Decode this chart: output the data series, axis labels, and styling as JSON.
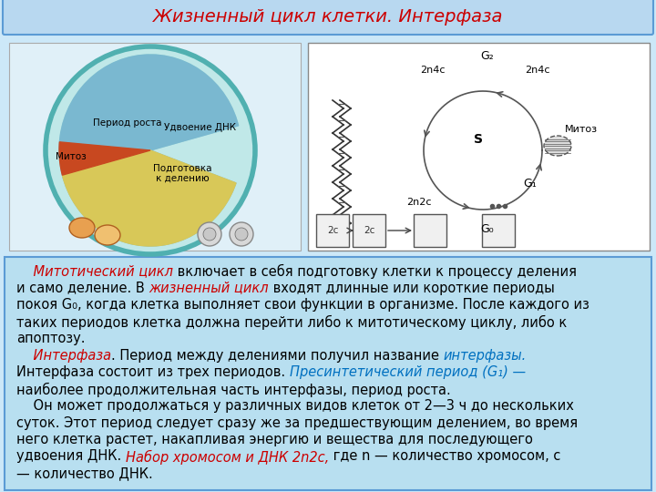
{
  "title": "Жизненный цикл клетки. Интерфаза",
  "title_color": "#cc0000",
  "title_fontsize": 14,
  "bg_color": "#cce8f8",
  "header_bg": "#b8d8f0",
  "text_bg": "#b8dff0",
  "border_color": "#5b9bd5",
  "text_lines": [
    [
      {
        "t": "    Митотический цикл",
        "c": "#cc0000",
        "i": true
      },
      {
        "t": " включает в себя подготовку клетки к процессу деления",
        "c": "#000000",
        "i": false
      }
    ],
    [
      {
        "t": "и само деление. В ",
        "c": "#000000",
        "i": false
      },
      {
        "t": "жизненный цикл",
        "c": "#cc0000",
        "i": true
      },
      {
        "t": " входят длинные или короткие периоды",
        "c": "#000000",
        "i": false
      }
    ],
    [
      {
        "t": "покоя G₀, когда клетка выполняет свои функции в организме. После каждого из",
        "c": "#000000",
        "i": false
      }
    ],
    [
      {
        "t": "таких периодов клетка должна перейти либо к митотическому циклу, либо к",
        "c": "#000000",
        "i": false
      }
    ],
    [
      {
        "t": "апоптозу.",
        "c": "#000000",
        "i": false
      }
    ],
    [
      {
        "t": "    Интерфаза",
        "c": "#cc0000",
        "i": true
      },
      {
        "t": ". Период между делениями получил название ",
        "c": "#000000",
        "i": false
      },
      {
        "t": "интерфазы.",
        "c": "#0070c0",
        "i": true
      }
    ],
    [
      {
        "t": "Интерфаза состоит из трех периодов. ",
        "c": "#000000",
        "i": false
      },
      {
        "t": "Пресинтетический период (G₁) —",
        "c": "#0070c0",
        "i": true
      }
    ],
    [
      {
        "t": "наиболее продолжительная часть интерфазы, период роста.",
        "c": "#000000",
        "i": false
      }
    ],
    [
      {
        "t": "    Он может продолжаться у различных видов клеток от 2—3 ч до нескольких",
        "c": "#000000",
        "i": false
      }
    ],
    [
      {
        "t": "суток. Этот период следует сразу же за предшествующим делением, во время",
        "c": "#000000",
        "i": false
      }
    ],
    [
      {
        "t": "него клетка растет, накапливая энергию и вещества для последующего",
        "c": "#000000",
        "i": false
      }
    ],
    [
      {
        "t": "удвоения ДНК. ",
        "c": "#000000",
        "i": false
      },
      {
        "t": "Набор хромосом и ДНК 2n2c,",
        "c": "#cc0000",
        "i": true
      },
      {
        "t": " где n — количество хромосом, с",
        "c": "#000000",
        "i": false
      }
    ],
    [
      {
        "t": "— количество ДНК.",
        "c": "#000000",
        "i": false
      }
    ]
  ]
}
